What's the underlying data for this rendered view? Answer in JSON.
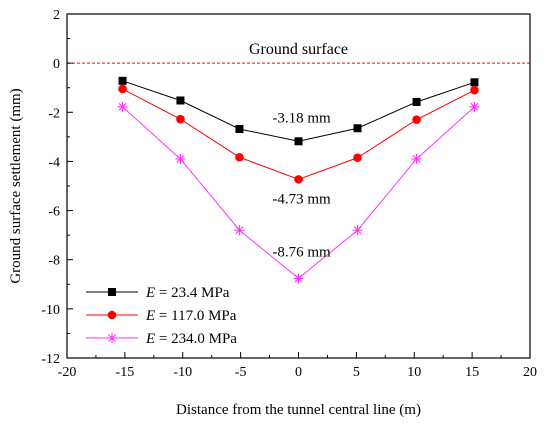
{
  "chart_data": {
    "type": "line",
    "title": "",
    "xlabel": "Distance from the tunnel central line (m)",
    "ylabel": "Ground surface settlement (mm)",
    "xlim": [
      -20,
      20
    ],
    "ylim": [
      -12,
      2
    ],
    "xticks": [
      -20,
      -15,
      -10,
      -5,
      0,
      5,
      10,
      15,
      20
    ],
    "yticks": [
      2,
      0,
      -2,
      -4,
      -6,
      -8,
      -10,
      -12
    ],
    "x": [
      -15.2,
      -10.2,
      -5.1,
      0,
      5.1,
      10.2,
      15.2
    ],
    "series": [
      {
        "name_italic": "E",
        "name_rest": " = 23.4 MPa",
        "color": "#000000",
        "marker": "square",
        "values": [
          -0.72,
          -1.52,
          -2.68,
          -3.18,
          -2.65,
          -1.58,
          -0.78
        ]
      },
      {
        "name_italic": "E",
        "name_rest": " = 117.0 MPa",
        "color": "#ff0000",
        "marker": "circle",
        "values": [
          -1.05,
          -2.28,
          -3.83,
          -4.73,
          -3.85,
          -2.3,
          -1.1
        ]
      },
      {
        "name_italic": "E",
        "name_rest": " = 234.0 MPa",
        "color": "#ff33ff",
        "marker": "asterisk",
        "values": [
          -1.78,
          -3.9,
          -6.8,
          -8.76,
          -6.8,
          -3.9,
          -1.78
        ]
      }
    ],
    "reference_line": {
      "y": 0,
      "color": "#ff0000",
      "style": "dashed",
      "label": "Ground surface"
    },
    "annotations": [
      {
        "text": "-3.18 mm",
        "x": 0,
        "y": -3.18
      },
      {
        "text": "-4.73 mm",
        "x": 0,
        "y": -4.73
      },
      {
        "text": "-8.76 mm",
        "x": 0,
        "y": -8.76
      }
    ],
    "legend": "bottom-left",
    "grid": false
  }
}
